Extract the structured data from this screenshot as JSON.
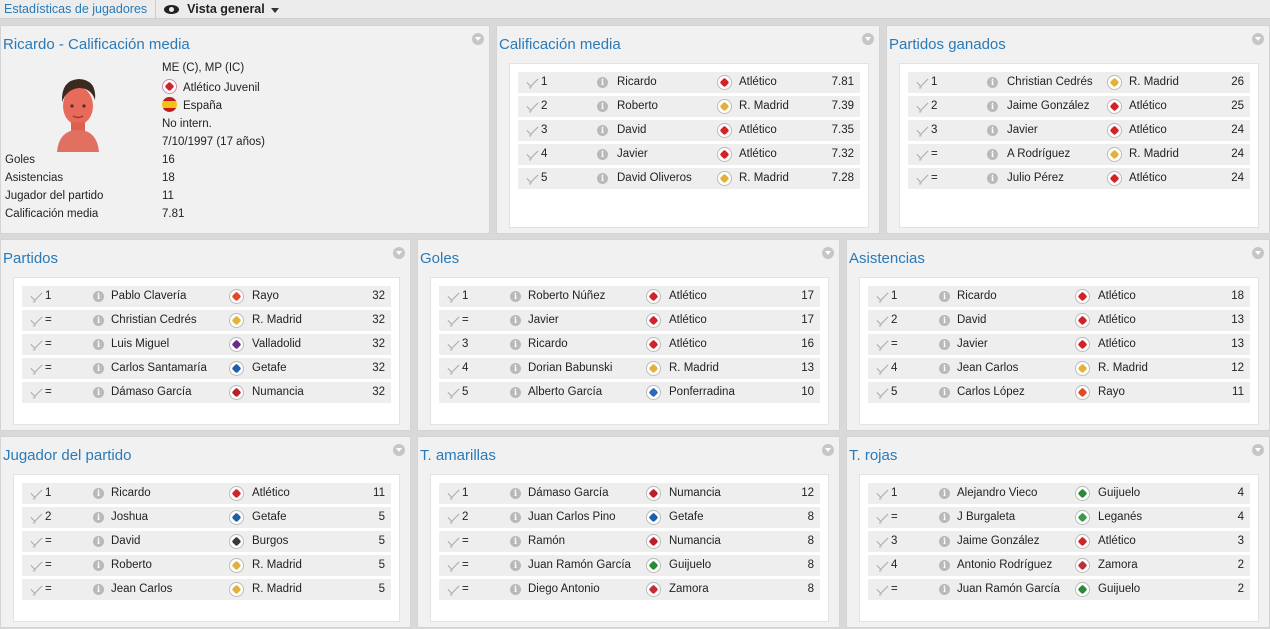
{
  "topbar": {
    "section": "Estadísticas de jugadores",
    "view": "Vista general"
  },
  "colors": {
    "accent": "#2a7ab8",
    "atletico": "#d2232a",
    "madrid": "#e3b23c"
  },
  "player": {
    "title": "Ricardo - Calificación media",
    "positions": "ME (C), MP (IC)",
    "club": "Atlético Juvenil",
    "nation": "España",
    "intl": "No intern.",
    "born": "7/10/1997 (17 años)",
    "stats": [
      {
        "label": "Goles",
        "value": "16"
      },
      {
        "label": "Asistencias",
        "value": "18"
      },
      {
        "label": "Jugador del partido",
        "value": "11"
      },
      {
        "label": "Calificación media",
        "value": "7.81"
      }
    ]
  },
  "panels": {
    "rating": {
      "title": "Calificación media",
      "rows": [
        {
          "rank": "1",
          "name": "Ricardo",
          "club": "Atlético",
          "value": "7.81",
          "crest": "#d2232a"
        },
        {
          "rank": "2",
          "name": "Roberto",
          "club": "R. Madrid",
          "value": "7.39",
          "crest": "#e3b23c"
        },
        {
          "rank": "3",
          "name": "David",
          "club": "Atlético",
          "value": "7.35",
          "crest": "#d2232a"
        },
        {
          "rank": "4",
          "name": "Javier",
          "club": "Atlético",
          "value": "7.32",
          "crest": "#d2232a"
        },
        {
          "rank": "5",
          "name": "David Oliveros",
          "club": "R. Madrid",
          "value": "7.28",
          "crest": "#e3b23c"
        }
      ]
    },
    "wins": {
      "title": "Partidos ganados",
      "rows": [
        {
          "rank": "1",
          "name": "Christian Cedrés",
          "club": "R. Madrid",
          "value": "26",
          "crest": "#e3b23c"
        },
        {
          "rank": "2",
          "name": "Jaime González",
          "club": "Atlético",
          "value": "25",
          "crest": "#d2232a"
        },
        {
          "rank": "3",
          "name": "Javier",
          "club": "Atlético",
          "value": "24",
          "crest": "#d2232a"
        },
        {
          "rank": "=",
          "name": "A Rodríguez",
          "club": "R. Madrid",
          "value": "24",
          "crest": "#e3b23c"
        },
        {
          "rank": "=",
          "name": "Julio Pérez",
          "club": "Atlético",
          "value": "24",
          "crest": "#d2232a"
        }
      ]
    },
    "matches": {
      "title": "Partidos",
      "rows": [
        {
          "rank": "1",
          "name": "Pablo Clavería",
          "club": "Rayo",
          "value": "32",
          "crest": "#e04a2a"
        },
        {
          "rank": "=",
          "name": "Christian Cedrés",
          "club": "R. Madrid",
          "value": "32",
          "crest": "#e3b23c"
        },
        {
          "rank": "=",
          "name": "Luis Miguel",
          "club": "Valladolid",
          "value": "32",
          "crest": "#6a2a8a"
        },
        {
          "rank": "=",
          "name": "Carlos Santamaría",
          "club": "Getafe",
          "value": "32",
          "crest": "#1f5fa8"
        },
        {
          "rank": "=",
          "name": "Dámaso García",
          "club": "Numancia",
          "value": "32",
          "crest": "#b8202a"
        }
      ]
    },
    "goals": {
      "title": "Goles",
      "rows": [
        {
          "rank": "1",
          "name": "Roberto Núñez",
          "club": "Atlético",
          "value": "17",
          "crest": "#d2232a"
        },
        {
          "rank": "=",
          "name": "Javier",
          "club": "Atlético",
          "value": "17",
          "crest": "#d2232a"
        },
        {
          "rank": "3",
          "name": "Ricardo",
          "club": "Atlético",
          "value": "16",
          "crest": "#d2232a"
        },
        {
          "rank": "4",
          "name": "Dorian Babunski",
          "club": "R. Madrid",
          "value": "13",
          "crest": "#e3b23c"
        },
        {
          "rank": "5",
          "name": "Alberto García",
          "club": "Ponferradina",
          "value": "10",
          "crest": "#2a6ab8"
        }
      ]
    },
    "assists": {
      "title": "Asistencias",
      "rows": [
        {
          "rank": "1",
          "name": "Ricardo",
          "club": "Atlético",
          "value": "18",
          "crest": "#d2232a"
        },
        {
          "rank": "2",
          "name": "David",
          "club": "Atlético",
          "value": "13",
          "crest": "#d2232a"
        },
        {
          "rank": "=",
          "name": "Javier",
          "club": "Atlético",
          "value": "13",
          "crest": "#d2232a"
        },
        {
          "rank": "4",
          "name": "Jean Carlos",
          "club": "R. Madrid",
          "value": "12",
          "crest": "#e3b23c"
        },
        {
          "rank": "5",
          "name": "Carlos López",
          "club": "Rayo",
          "value": "11",
          "crest": "#e04a2a"
        }
      ]
    },
    "motm": {
      "title": "Jugador del partido",
      "rows": [
        {
          "rank": "1",
          "name": "Ricardo",
          "club": "Atlético",
          "value": "11",
          "crest": "#d2232a"
        },
        {
          "rank": "2",
          "name": "Joshua",
          "club": "Getafe",
          "value": "5",
          "crest": "#1f5fa8"
        },
        {
          "rank": "=",
          "name": "David",
          "club": "Burgos",
          "value": "5",
          "crest": "#3a3a3a"
        },
        {
          "rank": "=",
          "name": "Roberto",
          "club": "R. Madrid",
          "value": "5",
          "crest": "#e3b23c"
        },
        {
          "rank": "=",
          "name": "Jean Carlos",
          "club": "R. Madrid",
          "value": "5",
          "crest": "#e3b23c"
        }
      ]
    },
    "yellow": {
      "title": "T. amarillas",
      "rows": [
        {
          "rank": "1",
          "name": "Dámaso García",
          "club": "Numancia",
          "value": "12",
          "crest": "#b8202a"
        },
        {
          "rank": "2",
          "name": "Juan Carlos Pino",
          "club": "Getafe",
          "value": "8",
          "crest": "#1f5fa8"
        },
        {
          "rank": "=",
          "name": "Ramón",
          "club": "Numancia",
          "value": "8",
          "crest": "#b8202a"
        },
        {
          "rank": "=",
          "name": "Juan Ramón García",
          "club": "Guijuelo",
          "value": "8",
          "crest": "#2a8a3a"
        },
        {
          "rank": "=",
          "name": "Diego Antonio",
          "club": "Zamora",
          "value": "8",
          "crest": "#c0303a"
        }
      ]
    },
    "red": {
      "title": "T. rojas",
      "rows": [
        {
          "rank": "1",
          "name": "Alejandro Vieco",
          "club": "Guijuelo",
          "value": "4",
          "crest": "#2a8a3a"
        },
        {
          "rank": "=",
          "name": "J Burgaleta",
          "club": "Leganés",
          "value": "4",
          "crest": "#3a9a4a"
        },
        {
          "rank": "3",
          "name": "Jaime González",
          "club": "Atlético",
          "value": "3",
          "crest": "#d2232a"
        },
        {
          "rank": "4",
          "name": "Antonio Rodríguez",
          "club": "Zamora",
          "value": "2",
          "crest": "#c0303a"
        },
        {
          "rank": "=",
          "name": "Juan Ramón García",
          "club": "Guijuelo",
          "value": "2",
          "crest": "#2a8a3a"
        }
      ]
    }
  }
}
